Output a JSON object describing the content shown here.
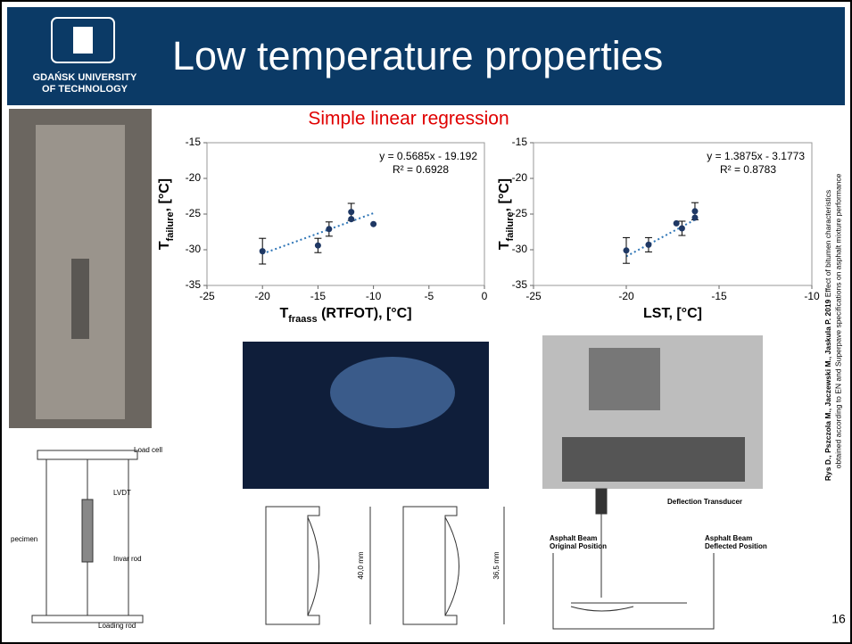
{
  "header": {
    "logo_line1": "GDAŃSK UNIVERSITY",
    "logo_line2": "OF TECHNOLOGY",
    "title": "Low temperature properties"
  },
  "subtitle": "Simple linear regression",
  "chart_data": [
    {
      "type": "scatter",
      "color": "#1f3864",
      "x": [
        -20,
        -15,
        -14,
        -12,
        -12,
        -10
      ],
      "values": [
        -30.2,
        -29.4,
        -27.1,
        -24.7,
        -25.7,
        -26.4
      ],
      "errors": [
        1.8,
        1.0,
        1.0,
        1.2,
        null,
        null
      ],
      "xlim": [
        -25,
        0
      ],
      "xticks": [
        -25,
        -20,
        -15,
        -10,
        -5,
        0
      ],
      "ylim": [
        -35,
        -15
      ],
      "yticks": [
        -35,
        -30,
        -25,
        -20,
        -15
      ],
      "x_label": {
        "main": "T",
        "sub": "fraass",
        "rest": " (RTFOT), [°C]"
      },
      "y_label": {
        "main": "T",
        "sub": "failure",
        "rest": ", [°C]"
      },
      "trendline": {
        "slope": 0.5685,
        "intercept": -19.192,
        "color": "#2e75b6",
        "equation": "y = 0.5685x - 19.192",
        "r2": "R² = 0.6928"
      }
    },
    {
      "type": "scatter",
      "color": "#1f3864",
      "x": [
        -20,
        -18.8,
        -17.3,
        -17,
        -16.3,
        -16.3
      ],
      "values": [
        -30.1,
        -29.3,
        -26.3,
        -27,
        -24.6,
        -25.5
      ],
      "errors": [
        1.8,
        1.0,
        null,
        1.0,
        1.2,
        null
      ],
      "xlim": [
        -25,
        -10
      ],
      "xticks": [
        -25,
        -20,
        -15,
        -10
      ],
      "ylim": [
        -35,
        -15
      ],
      "yticks": [
        -35,
        -30,
        -25,
        -20,
        -15
      ],
      "x_label": {
        "main": "LST, [°C]"
      },
      "y_label": {
        "main": "T",
        "sub": "failure",
        "rest": ", [°C]"
      },
      "trendline": {
        "slope": 1.3875,
        "intercept": -3.1773,
        "color": "#2e75b6",
        "equation": "y = 1.3875x - 3.1773",
        "r2": "R² = 0.8783"
      }
    }
  ],
  "citation": {
    "authors": "Rys D., Pszczola M., Jaczewski M., Jaskula P. 2019",
    "title_line1": "Effect of bitumen characteristics",
    "title_line2": "obtained according to EN and Superpave specifications on asphalt mixture performance"
  },
  "diagram_labels": {
    "load_cell": "Load cell",
    "lvdt": "LVDT",
    "specimen": "pecimen",
    "invar_rod": "Invar rod",
    "loading_rod": "Loading rod",
    "dim1": "40,0 mm",
    "dim2": "36,5 mm",
    "transducer": "Deflection Transducer",
    "original": "Asphalt Beam",
    "original2": "Original Position",
    "deflected": "Asphalt Beam",
    "deflected2": "Deflected Position"
  },
  "page_number": "16"
}
